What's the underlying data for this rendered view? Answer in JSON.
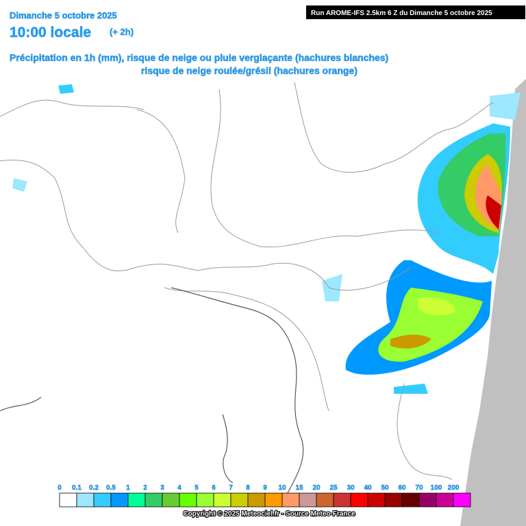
{
  "header": {
    "date": "Dimanche 5 octobre 2025",
    "time": "10:00 locale",
    "offset": "(+ 2h)",
    "description_1": "Précipitation en 1h (mm), risque de neige ou pluie verglaçante (hachures blanches)",
    "description_2": "risque de neige roulée/grésil (hachures orange)",
    "run": "Run AROME-IFS 2.5km 6 Z du Dimanche 5 octobre 2025"
  },
  "legend": [
    {
      "label": "0",
      "color": "#ffffff"
    },
    {
      "label": "0.1",
      "color": "#9be8ff"
    },
    {
      "label": "0.2",
      "color": "#33ccff"
    },
    {
      "label": "0.5",
      "color": "#0099ff"
    },
    {
      "label": "1",
      "color": "#00ff99"
    },
    {
      "label": "2",
      "color": "#33cc66"
    },
    {
      "label": "3",
      "color": "#66cc33"
    },
    {
      "label": "4",
      "color": "#66ff00"
    },
    {
      "label": "5",
      "color": "#99ff33"
    },
    {
      "label": "6",
      "color": "#ccff33"
    },
    {
      "label": "7",
      "color": "#cccc00"
    },
    {
      "label": "8",
      "color": "#cc9900"
    },
    {
      "label": "9",
      "color": "#ff9900"
    },
    {
      "label": "10",
      "color": "#ff9966"
    },
    {
      "label": "15",
      "color": "#cc9999"
    },
    {
      "label": "20",
      "color": "#cc6633"
    },
    {
      "label": "25",
      "color": "#cc3333"
    },
    {
      "label": "30",
      "color": "#ff0000"
    },
    {
      "label": "40",
      "color": "#cc0000"
    },
    {
      "label": "50",
      "color": "#990000"
    },
    {
      "label": "60",
      "color": "#660000"
    },
    {
      "label": "70",
      "color": "#990066"
    },
    {
      "label": "100",
      "color": "#cc0099"
    },
    {
      "label": "200",
      "color": "#ff00ff"
    }
  ],
  "footer": {
    "copyright": "Copyright © 2025 Meteociel.fr - Source Meteo-France"
  }
}
